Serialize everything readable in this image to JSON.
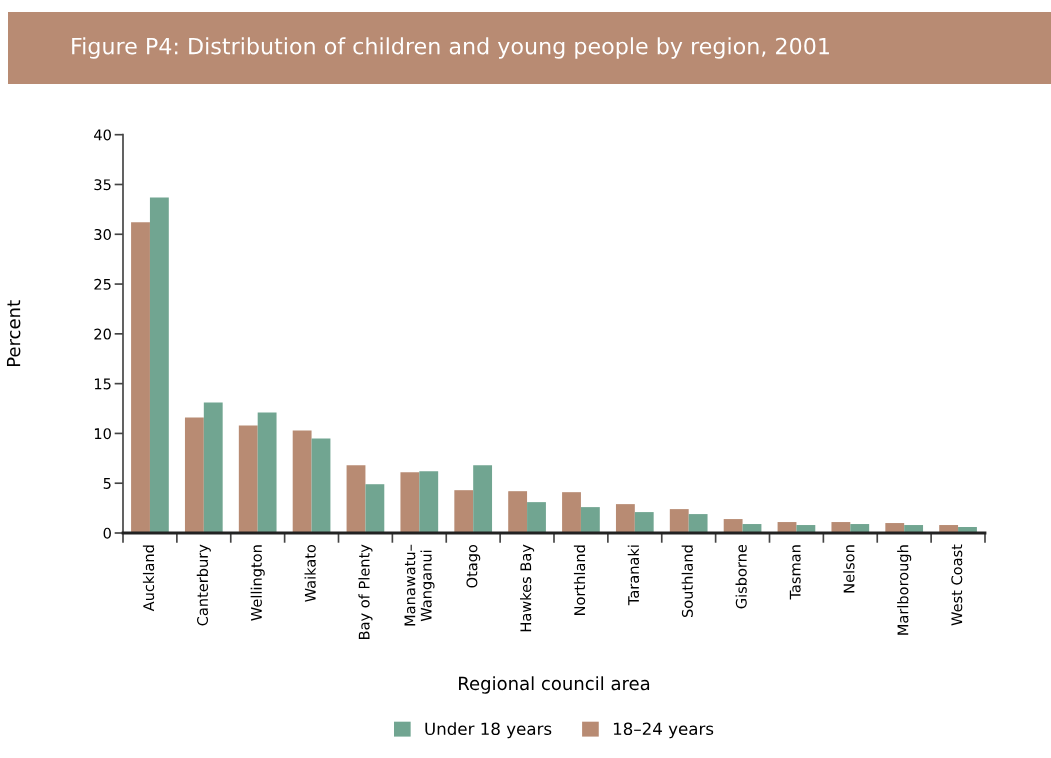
{
  "chart_data": {
    "type": "bar",
    "title": "Figure P4: Distribution of children and young people by region, 2001",
    "xlabel": "Regional council area",
    "ylabel": "Percent",
    "categories": [
      "Auckland",
      "Canterbury",
      "Wellington",
      "Waikato",
      "Bay of Plenty",
      "Manawatu–\nWanganui",
      "Otago",
      "Hawkes Bay",
      "Northland",
      "Taranaki",
      "Southland",
      "Gisborne",
      "Tasman",
      "Nelson",
      "Marlborough",
      "West Coast"
    ],
    "series": [
      {
        "name": "18–24 years",
        "color": "#b88b73",
        "values": [
          31.2,
          11.6,
          10.8,
          10.3,
          6.8,
          6.1,
          4.3,
          4.2,
          4.1,
          2.9,
          2.4,
          1.4,
          1.1,
          1.1,
          1.0,
          0.8
        ]
      },
      {
        "name": "Under 18 years",
        "color": "#71a591",
        "values": [
          33.7,
          13.1,
          12.1,
          9.5,
          4.9,
          6.2,
          6.8,
          3.1,
          2.6,
          2.1,
          1.9,
          0.9,
          0.8,
          0.9,
          0.8,
          0.6
        ]
      }
    ],
    "ylim": [
      0,
      40
    ],
    "yticks": [
      0,
      5,
      10,
      15,
      20,
      25,
      30,
      35,
      40
    ],
    "grid": false,
    "legend": "bottom"
  }
}
